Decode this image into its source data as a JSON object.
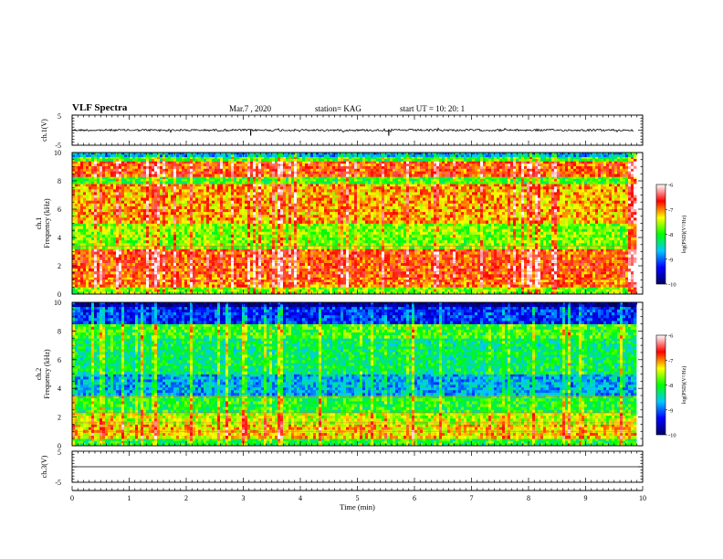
{
  "header": {
    "title": "VLF Spectra",
    "date": "Mar.7 , 2020",
    "station": "station= KAG",
    "start": "start UT = 10: 20: 1"
  },
  "chart_data": [
    {
      "type": "line",
      "panel": "waveform",
      "ylabel": "ch.1(V)",
      "ylim": [
        -5,
        5
      ],
      "ytick_labels": [
        "5",
        "-5"
      ],
      "series": [
        {
          "values": []
        }
      ]
    },
    {
      "type": "heatmap",
      "panel": "ch1",
      "ylabel_line1": "ch.1",
      "ylabel_line2": "Frequency (kHz)",
      "ylim": [
        0,
        10
      ],
      "yticks": [
        0,
        2,
        4,
        6,
        8,
        10
      ],
      "colorbar": {
        "label": "log(PSD)(V²/Hz)",
        "range": [
          -10,
          -6
        ],
        "ticks": [
          -6,
          -7,
          -8,
          -9,
          -10
        ]
      },
      "bands": [
        {
          "f": [
            0,
            0.5
          ],
          "level": -7.8
        },
        {
          "f": [
            0.5,
            1.2
          ],
          "level": -7.0
        },
        {
          "f": [
            1.2,
            3.2
          ],
          "level": -6.9
        },
        {
          "f": [
            3.2,
            5.0
          ],
          "level": -7.8
        },
        {
          "f": [
            5.0,
            7.8
          ],
          "level": -7.2
        },
        {
          "f": [
            7.8,
            8.3
          ],
          "level": -8.0
        },
        {
          "f": [
            8.3,
            9.4
          ],
          "level": -6.9
        },
        {
          "f": [
            9.4,
            9.7
          ],
          "level": -8.0
        },
        {
          "f": [
            9.7,
            10
          ],
          "level": -8.8
        }
      ]
    },
    {
      "type": "heatmap",
      "panel": "ch2",
      "ylabel_line1": "ch.2",
      "ylabel_line2": "Frequency (kHz)",
      "ylim": [
        0,
        10
      ],
      "yticks": [
        0,
        2,
        4,
        6,
        8,
        10
      ],
      "colorbar": {
        "label": "log(PSD)(V²/Hz)",
        "range": [
          -10,
          -6
        ],
        "ticks": [
          -6,
          -7,
          -8,
          -9,
          -10
        ]
      },
      "bands": [
        {
          "f": [
            0,
            0.5
          ],
          "level": -8.1
        },
        {
          "f": [
            0.5,
            1.5
          ],
          "level": -7.3
        },
        {
          "f": [
            1.5,
            2.3
          ],
          "level": -7.6
        },
        {
          "f": [
            2.3,
            3.5
          ],
          "level": -8.1
        },
        {
          "f": [
            3.5,
            5.0
          ],
          "level": -8.8
        },
        {
          "f": [
            5.0,
            7.5
          ],
          "level": -8.3
        },
        {
          "f": [
            7.5,
            8.5
          ],
          "level": -8.0
        },
        {
          "f": [
            8.5,
            9.7
          ],
          "level": -9.3
        },
        {
          "f": [
            9.7,
            10
          ],
          "level": -9.9
        }
      ]
    },
    {
      "type": "line",
      "panel": "waveform",
      "ylabel": "ch.3(V)",
      "ylim": [
        -5,
        5
      ],
      "ytick_labels": [
        "5",
        "-5"
      ],
      "series": [
        {
          "values": []
        }
      ]
    }
  ],
  "xaxis": {
    "label": "Time (min)",
    "xlim": [
      0,
      10
    ],
    "ticks": [
      0,
      1,
      2,
      3,
      4,
      5,
      6,
      7,
      8,
      9,
      10
    ],
    "data_end": 9.85
  },
  "colors": {
    "cmap": [
      "#000066",
      "#0000ff",
      "#00c8ff",
      "#00ff00",
      "#ffff00",
      "#ff0000",
      "#ffffff"
    ]
  }
}
